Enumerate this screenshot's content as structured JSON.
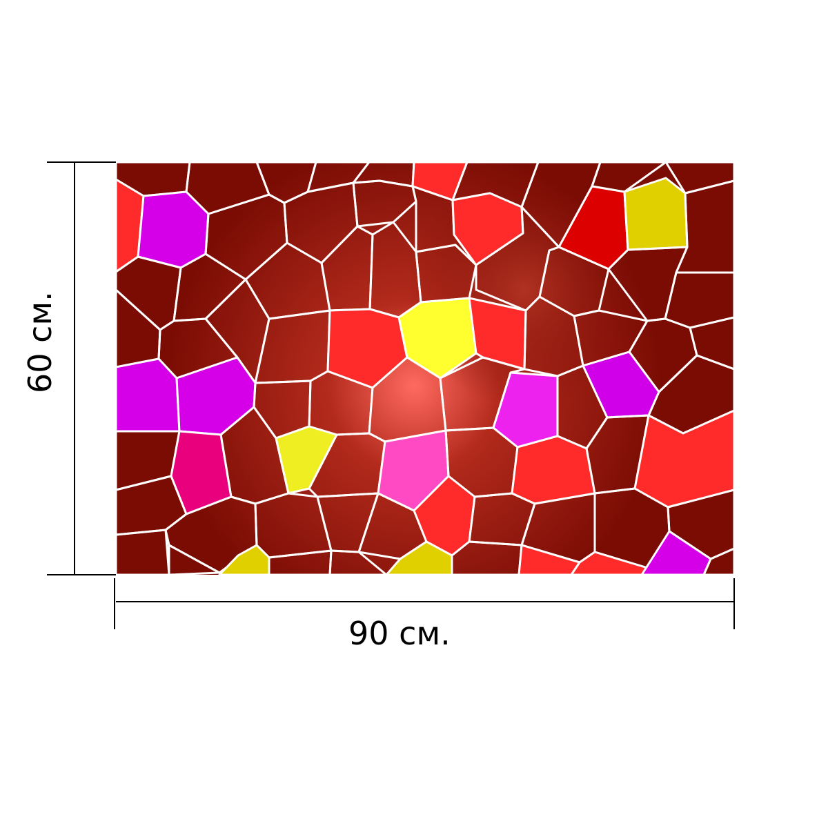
{
  "dimensions": {
    "width_label": "90 см.",
    "height_label": "60 см."
  },
  "colors": {
    "background": "#ffffff",
    "dimension_lines": "#000000",
    "tile_outline": "#ffffff",
    "dark_red": "#7a0c04",
    "red": "#ff2a2a",
    "magenta": "#d600e8",
    "yellow": "#f2f21a",
    "pink": "#ff48c8",
    "glow": "#ff6a60"
  },
  "artwork": {
    "description_icon": "stained-glass-mosaic"
  }
}
